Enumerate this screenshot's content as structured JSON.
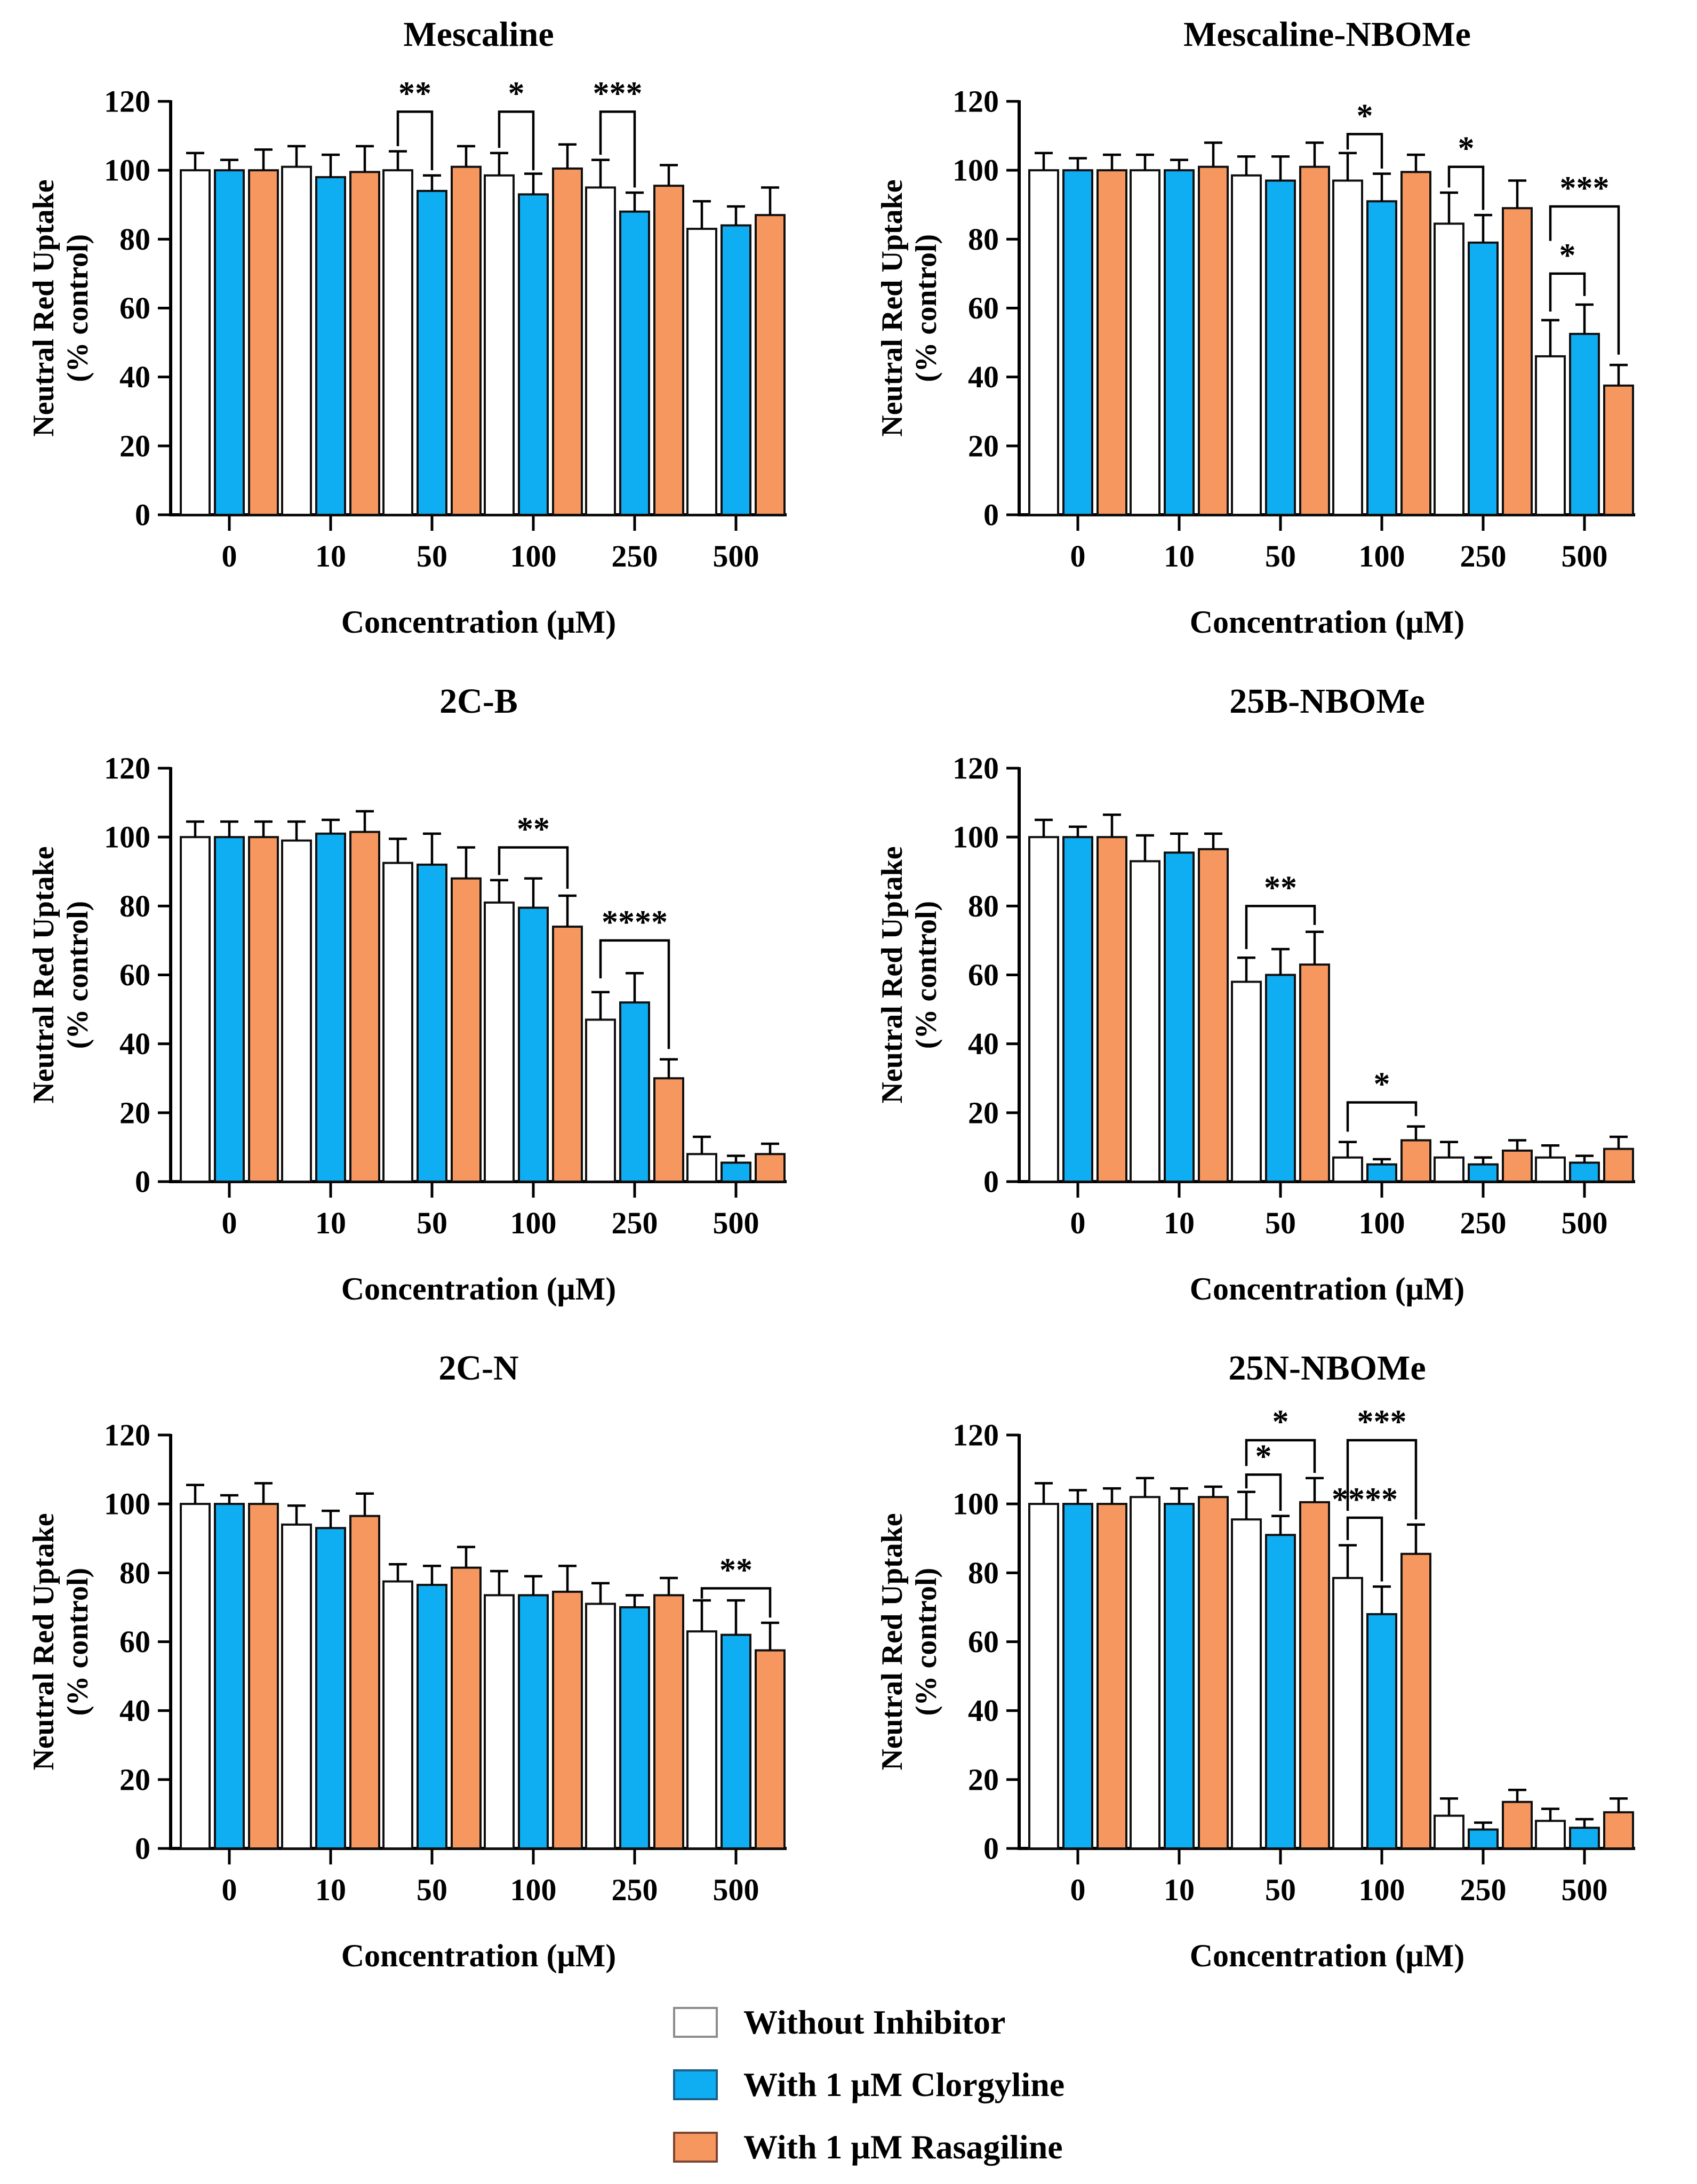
{
  "figure": {
    "background": "#ffffff",
    "panel_titles": [
      "Mescaline",
      "Mescaline-NBOMe",
      "2C-B",
      "25B-NBOMe",
      "2C-N",
      "25N-NBOMe"
    ]
  },
  "legend": {
    "items": [
      {
        "label": "Without Inhibitor",
        "color": "#ffffff",
        "border": "#8c8c8c"
      },
      {
        "label": "With 1 μM Clorgyline",
        "color": "#0faef2",
        "border": "#1c5f87"
      },
      {
        "label": "With 1 μM Rasagiline",
        "color": "#f6975f",
        "border": "#7a4632"
      }
    ]
  },
  "axis_defaults": {
    "xlabel": "Concentration (μM)",
    "ylabel_lines": [
      "Neutral Red Uptake",
      "(% control)"
    ],
    "yticks": [
      0,
      20,
      40,
      60,
      80,
      100,
      120
    ],
    "ylim": [
      0,
      120
    ],
    "categories": [
      "0",
      "10",
      "50",
      "100",
      "250",
      "500"
    ]
  },
  "chart_data": [
    {
      "type": "bar",
      "title": "Mescaline",
      "categories": [
        "0",
        "10",
        "50",
        "100",
        "250",
        "500"
      ],
      "xlabel": "Concentration (μM)",
      "ylabel": "Neutral Red Uptake (% control)",
      "ylim": [
        0,
        120
      ],
      "series": [
        {
          "name": "Without Inhibitor",
          "values": [
            100,
            101,
            100,
            98.5,
            95,
            83
          ],
          "errors": [
            5,
            6,
            5.5,
            6.5,
            8,
            8
          ]
        },
        {
          "name": "With 1 μM Clorgyline",
          "values": [
            100,
            98,
            94,
            93,
            88,
            84
          ],
          "errors": [
            3,
            6.5,
            4.5,
            6,
            5.5,
            5.5
          ]
        },
        {
          "name": "With 1 μM Rasagiline",
          "values": [
            100,
            99.5,
            101,
            100.5,
            95.5,
            87
          ],
          "errors": [
            6,
            7.5,
            6,
            7,
            6,
            8
          ]
        }
      ],
      "significance": [
        {
          "group": 2,
          "from": 0,
          "to": 1,
          "label": "**",
          "top": 117,
          "legs": [
            107,
            100
          ]
        },
        {
          "group": 3,
          "from": 0,
          "to": 1,
          "label": "*",
          "top": 117,
          "legs": [
            106.5,
            100
          ]
        },
        {
          "group": 4,
          "from": 0,
          "to": 1,
          "label": "***",
          "top": 117,
          "legs": [
            104.5,
            95
          ]
        }
      ]
    },
    {
      "type": "bar",
      "title": "Mescaline-NBOMe",
      "categories": [
        "0",
        "10",
        "50",
        "100",
        "250",
        "500"
      ],
      "xlabel": "Concentration (μM)",
      "ylabel": "Neutral Red Uptake (% control)",
      "ylim": [
        0,
        120
      ],
      "series": [
        {
          "name": "Without Inhibitor",
          "values": [
            100,
            100,
            98.5,
            97,
            84.5,
            46
          ],
          "errors": [
            5,
            4.5,
            5.5,
            8,
            9,
            10.5
          ]
        },
        {
          "name": "With 1 μM Clorgyline",
          "values": [
            100,
            100,
            97,
            91,
            79,
            52.5
          ],
          "errors": [
            3.5,
            3,
            7,
            8,
            8,
            8.5
          ]
        },
        {
          "name": "With 1 μM Rasagiline",
          "values": [
            100,
            101,
            101,
            99.5,
            89,
            37.5
          ],
          "errors": [
            4.5,
            7,
            7,
            5,
            8,
            6
          ]
        }
      ],
      "significance": [
        {
          "group": 3,
          "from": 0,
          "to": 1,
          "label": "*",
          "top": 110.5,
          "legs": [
            106,
            100.5
          ]
        },
        {
          "group": 4,
          "from": 0,
          "to": 1,
          "label": "*",
          "top": 101,
          "legs": [
            95,
            88.5
          ]
        },
        {
          "group": 5,
          "from": 0,
          "to": 1,
          "label": "*",
          "top": 70,
          "legs": [
            59,
            63.5
          ]
        },
        {
          "group": 5,
          "from": 0,
          "to": 2,
          "label": "***",
          "top": 89.5,
          "legs": [
            79.5,
            46.5
          ]
        }
      ]
    },
    {
      "type": "bar",
      "title": "2C-B",
      "categories": [
        "0",
        "10",
        "50",
        "100",
        "250",
        "500"
      ],
      "xlabel": "Concentration (μM)",
      "ylabel": "Neutral Red Uptake (% control)",
      "ylim": [
        0,
        120
      ],
      "series": [
        {
          "name": "Without Inhibitor",
          "values": [
            100,
            99,
            92.5,
            81,
            47,
            8
          ],
          "errors": [
            4.5,
            5.5,
            7,
            6.5,
            8,
            5
          ]
        },
        {
          "name": "With 1 μM Clorgyline",
          "values": [
            100,
            101,
            92,
            79.5,
            52,
            5.5
          ],
          "errors": [
            4.5,
            4,
            9,
            8.5,
            8.5,
            2
          ]
        },
        {
          "name": "With 1 μM Rasagiline",
          "values": [
            100,
            101.5,
            88,
            74,
            30,
            8
          ],
          "errors": [
            4.5,
            6,
            9,
            9,
            5.5,
            3
          ]
        }
      ],
      "significance": [
        {
          "group": 3,
          "from": 0,
          "to": 2,
          "label": "**",
          "top": 97,
          "legs": [
            89,
            85
          ]
        },
        {
          "group": 4,
          "from": 0,
          "to": 2,
          "label": "****",
          "top": 70,
          "legs": [
            59,
            38.5
          ]
        }
      ]
    },
    {
      "type": "bar",
      "title": "25B-NBOMe",
      "categories": [
        "0",
        "10",
        "50",
        "100",
        "250",
        "500"
      ],
      "xlabel": "Concentration (μM)",
      "ylabel": "Neutral Red Uptake (% control)",
      "ylim": [
        0,
        120
      ],
      "series": [
        {
          "name": "Without Inhibitor",
          "values": [
            100,
            93,
            58,
            7,
            7,
            7
          ],
          "errors": [
            5,
            7.5,
            7,
            4.5,
            4.5,
            3.5
          ]
        },
        {
          "name": "With 1 μM Clorgyline",
          "values": [
            100,
            95.5,
            60,
            5,
            5,
            5.5
          ],
          "errors": [
            3,
            5.5,
            7.5,
            1.5,
            2,
            2
          ]
        },
        {
          "name": "With 1 μM Rasagiline",
          "values": [
            100,
            96.5,
            63,
            12,
            9,
            9.5
          ],
          "errors": [
            6.5,
            4.5,
            9.5,
            4,
            3,
            3.5
          ]
        }
      ],
      "significance": [
        {
          "group": 2,
          "from": 0,
          "to": 2,
          "label": "**",
          "top": 80,
          "legs": [
            67.5,
            74.5
          ]
        },
        {
          "group": 3,
          "from": 0,
          "to": 2,
          "label": "*",
          "top": 23,
          "legs": [
            14.5,
            19
          ]
        }
      ]
    },
    {
      "type": "bar",
      "title": "2C-N",
      "categories": [
        "0",
        "10",
        "50",
        "100",
        "250",
        "500"
      ],
      "xlabel": "Concentration (μM)",
      "ylabel": "Neutral Red Uptake (% control)",
      "ylim": [
        0,
        120
      ],
      "series": [
        {
          "name": "Without Inhibitor",
          "values": [
            100,
            94,
            77.5,
            73.5,
            71,
            63
          ],
          "errors": [
            5.5,
            5.5,
            5,
            7,
            6,
            9
          ]
        },
        {
          "name": "With 1 μM Clorgyline",
          "values": [
            100,
            93,
            76.5,
            73.5,
            70,
            62
          ],
          "errors": [
            2.5,
            5,
            5.5,
            5.5,
            3.5,
            10
          ]
        },
        {
          "name": "With 1 μM Rasagiline",
          "values": [
            100,
            96.5,
            81.5,
            74.5,
            73.5,
            57.5
          ],
          "errors": [
            6,
            6.5,
            6,
            7.5,
            5,
            8
          ]
        }
      ],
      "significance": [
        {
          "group": 5,
          "from": 0,
          "to": 2,
          "label": "**",
          "top": 75.5,
          "legs": [
            72.5,
            67
          ]
        }
      ]
    },
    {
      "type": "bar",
      "title": "25N-NBOMe",
      "categories": [
        "0",
        "10",
        "50",
        "100",
        "250",
        "500"
      ],
      "xlabel": "Concentration (μM)",
      "ylabel": "Neutral Red Uptake (% control)",
      "ylim": [
        0,
        120
      ],
      "series": [
        {
          "name": "Without Inhibitor",
          "values": [
            100,
            102,
            95.5,
            78.5,
            9.5,
            8
          ],
          "errors": [
            6,
            5.5,
            8,
            9.5,
            5,
            3.5
          ]
        },
        {
          "name": "With 1 μM Clorgyline",
          "values": [
            100,
            100,
            91,
            68,
            5.5,
            6
          ],
          "errors": [
            4,
            4.5,
            5.5,
            8,
            2,
            2.5
          ]
        },
        {
          "name": "With 1 μM Rasagiline",
          "values": [
            100,
            102,
            100.5,
            85.5,
            13.5,
            10.5
          ],
          "errors": [
            4.5,
            3,
            7,
            8.5,
            3.5,
            4
          ]
        }
      ],
      "significance": [
        {
          "group": 2,
          "from": 0,
          "to": 1,
          "label": "*",
          "top": 108.5,
          "legs": [
            104.5,
            98
          ]
        },
        {
          "group": 2,
          "from": 0,
          "to": 2,
          "label": "*",
          "top": 118.5,
          "legs": [
            111,
            109
          ]
        },
        {
          "group": 3,
          "from": 0,
          "to": 1,
          "label": "****",
          "top": 96,
          "legs": [
            89.5,
            77.5
          ]
        },
        {
          "group": 3,
          "from": 0,
          "to": 2,
          "label": "***",
          "top": 118.5,
          "legs": [
            98,
            95.5
          ]
        }
      ]
    }
  ]
}
